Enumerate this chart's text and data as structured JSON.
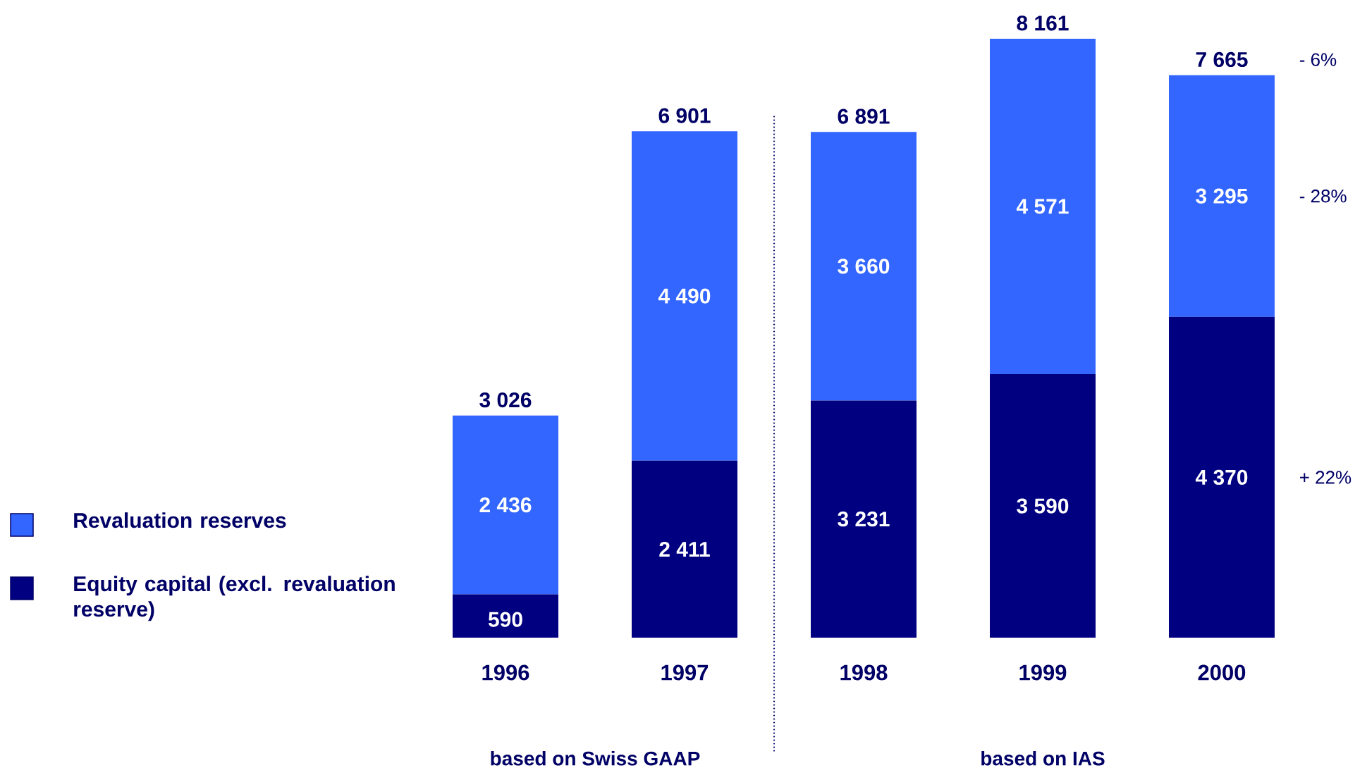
{
  "chart_data": {
    "type": "bar",
    "stacked": true,
    "categories": [
      "1996",
      "1997",
      "1998",
      "1999",
      "2000"
    ],
    "series": [
      {
        "name": "Equity capital (excl. revaluation reserve)",
        "color": "#000080",
        "values": [
          590,
          2411,
          3231,
          3590,
          4370
        ],
        "value_labels": [
          "590",
          "2 411",
          "3 231",
          "3 590",
          "4 370"
        ]
      },
      {
        "name": "Revaluation reserves",
        "color": "#3366ff",
        "values": [
          2436,
          4490,
          3660,
          4571,
          3295
        ],
        "value_labels": [
          "2 436",
          "4 490",
          "3 660",
          "4 571",
          "3 295"
        ]
      }
    ],
    "totals": [
      "3 026",
      "6 901",
      "6 891",
      "8 161",
      "7 665"
    ],
    "legend": "left",
    "annotations": [
      "based on Swiss GAAP",
      "based on IAS",
      "- 6%",
      "- 28%",
      "+ 22%"
    ]
  }
}
